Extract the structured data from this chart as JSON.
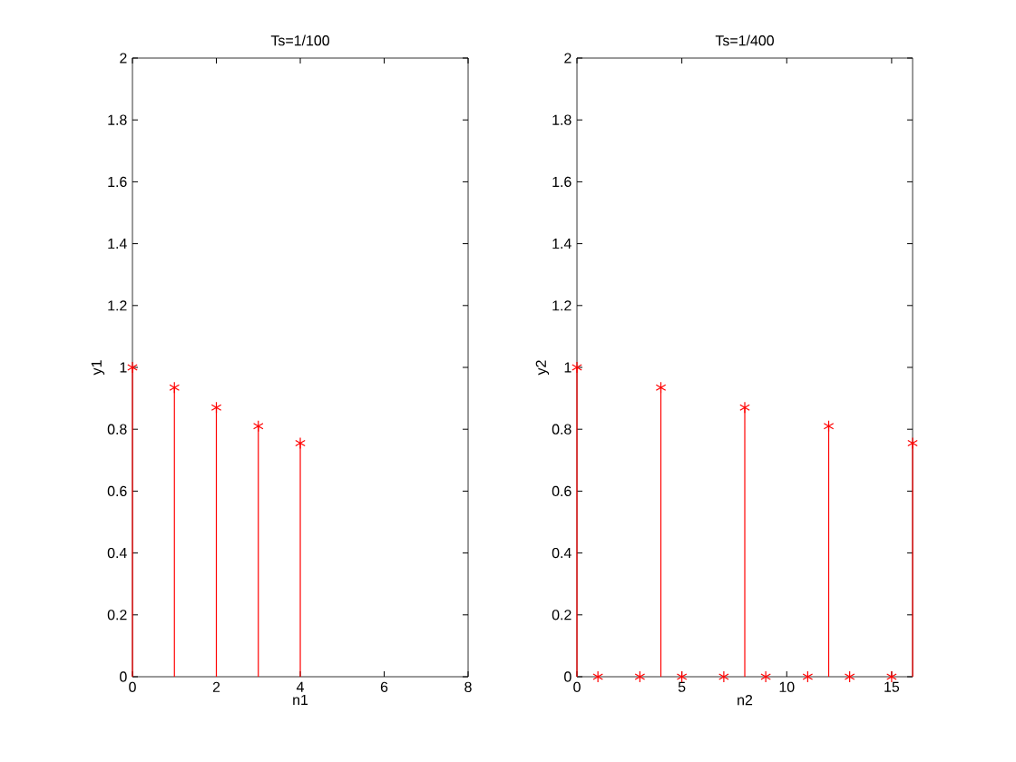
{
  "chart_data": [
    {
      "type": "lollipop",
      "title": "Ts=1/100",
      "xlabel": "n1",
      "ylabel": "y1",
      "marker": "cross",
      "x": [
        0,
        1,
        2,
        3,
        4
      ],
      "series": [
        {
          "color": "#ff0000",
          "values": [
            1,
            0.935,
            0.87,
            0.81,
            0.755
          ]
        }
      ],
      "xlim": [
        0,
        8
      ],
      "xticks": [
        0,
        2,
        4,
        6,
        8
      ],
      "ylim": [
        0,
        2
      ],
      "yticks": [
        0,
        0.2,
        0.4,
        0.6,
        0.8,
        1,
        1.2,
        1.4,
        1.6,
        1.8,
        2
      ]
    },
    {
      "type": "lollipop",
      "title": "Ts=1/400",
      "xlabel": "n2",
      "ylabel": "y2",
      "marker": "cross",
      "x": [
        0,
        1,
        3,
        4,
        5,
        7,
        8,
        9,
        11,
        12,
        13,
        15,
        16
      ],
      "series": [
        {
          "color": "#ff0000",
          "values": [
            1,
            0,
            0,
            0.935,
            0,
            0,
            0.87,
            0,
            0,
            0.81,
            0,
            0,
            0.755
          ]
        }
      ],
      "xlim": [
        0,
        16
      ],
      "xticks": [
        0,
        5,
        10,
        15
      ],
      "ylim": [
        0,
        2
      ],
      "yticks": [
        0,
        0.2,
        0.4,
        0.6,
        0.8,
        1,
        1.2,
        1.4,
        1.6,
        1.8,
        2
      ]
    }
  ]
}
